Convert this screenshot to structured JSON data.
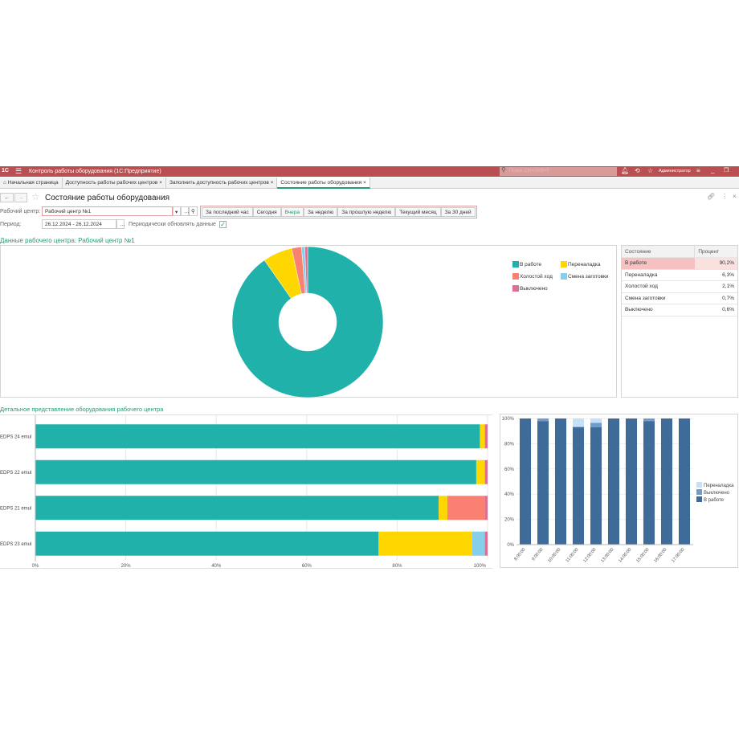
{
  "app": {
    "title": "Контроль работы оборудования  (1С:Предприятие)",
    "search_placeholder": "Поиск Ctrl+Shift+F",
    "user": "Администратор",
    "logo": "1С"
  },
  "tabs": [
    {
      "label": "Начальная страница"
    },
    {
      "label": "Доступность работы рабочих центров"
    },
    {
      "label": "Заполнить доступность рабочих центров"
    },
    {
      "label": "Состояние работы оборудования"
    }
  ],
  "page": {
    "title": "Состояние работы оборудования"
  },
  "form": {
    "work_center_label": "Рабочий центр:",
    "work_center_value": "Рабочий центр №1",
    "period_label": "Период:",
    "period_value": "26.12.2024 - 26.12.2024",
    "auto_refresh_label": "Периодически обновлять данные",
    "auto_refresh_checked": true
  },
  "period_buttons": [
    "За последний час",
    "Сегодня",
    "Вчера",
    "За неделю",
    "За прошлую неделю",
    "Текущий месяц",
    "За 30 дней"
  ],
  "section1_title": "Данные рабочего центра: Рабочий центр №1",
  "section2_title": "Детальное представление оборудования рабочего центра",
  "colors": {
    "В работе": "#20b2aa",
    "Переналадка": "#ffd700",
    "Холостой ход": "#fa8072",
    "Смена заготовки": "#87ceeb",
    "Выключено": "#db7093"
  },
  "state_table": {
    "headers": [
      "Состояние",
      "Процент"
    ],
    "rows": [
      [
        "В работе",
        "90,2%"
      ],
      [
        "Переналадка",
        "6,3%"
      ],
      [
        "Холостой ход",
        "2,1%"
      ],
      [
        "Смена заготовки",
        "0,7%"
      ],
      [
        "Выключено",
        "0,6%"
      ]
    ]
  },
  "chart_data": [
    {
      "type": "pie",
      "donut": true,
      "legend": "right",
      "categories": [
        "В работе",
        "Переналадка",
        "Холостой ход",
        "Смена заготовки",
        "Выключено"
      ],
      "values": [
        90.2,
        6.3,
        2.1,
        0.7,
        0.6
      ]
    },
    {
      "type": "bar",
      "orientation": "horizontal",
      "stacked": "percent",
      "categories": [
        "EDPS 24 emul",
        "EDPS 22 emul",
        "EDPS 21 emul",
        "EDPS 23 emul"
      ],
      "xticks": [
        "0%",
        "20%",
        "40%",
        "60%",
        "80%",
        "100%"
      ],
      "xlim": [
        0,
        100
      ],
      "series": [
        {
          "name": "В работе",
          "values": [
            98.3,
            97.5,
            89.2,
            75.9
          ]
        },
        {
          "name": "Переналадка",
          "values": [
            1.1,
            1.9,
            1.9,
            20.7
          ]
        },
        {
          "name": "Холостой ход",
          "values": [
            0,
            0,
            8.3,
            0
          ]
        },
        {
          "name": "Смена заготовки",
          "values": [
            0,
            0,
            0,
            2.8
          ]
        },
        {
          "name": "Выключено",
          "values": [
            0.6,
            0.6,
            0.6,
            0.6
          ]
        }
      ]
    },
    {
      "type": "bar",
      "orientation": "vertical",
      "stacked": "percent",
      "legend": "right",
      "categories": [
        "8:00:00",
        "9:00:00",
        "10:00:00",
        "11:00:00",
        "12:00:00",
        "13:00:00",
        "14:00:00",
        "15:00:00",
        "16:00:00",
        "17:00:00"
      ],
      "yticks": [
        "0%",
        "20%",
        "40%",
        "60%",
        "80%",
        "100%"
      ],
      "ylim": [
        0,
        100
      ],
      "colors": {
        "В работе": "#3f6b98",
        "Выключено": "#6f9ccc",
        "Переналадка": "#c6e0f7"
      },
      "series": [
        {
          "name": "В работе",
          "values": [
            100,
            98,
            100,
            93,
            93,
            100,
            100,
            98,
            100,
            100
          ]
        },
        {
          "name": "Выключено",
          "values": [
            0,
            2,
            0,
            0.5,
            3.5,
            0,
            0,
            2,
            0,
            0
          ]
        },
        {
          "name": "Переналадка",
          "values": [
            0,
            0,
            0,
            6.5,
            3.5,
            0,
            0,
            0,
            0,
            0
          ]
        }
      ]
    }
  ]
}
